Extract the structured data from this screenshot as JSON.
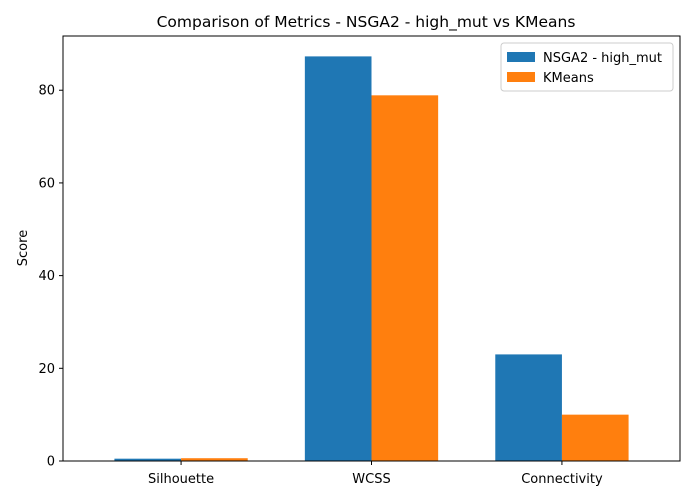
{
  "chart_data": {
    "type": "bar",
    "title": "Comparison of Metrics - NSGA2 - high_mut vs KMeans",
    "xlabel": "",
    "ylabel": "Score",
    "categories": [
      "Silhouette",
      "WCSS",
      "Connectivity"
    ],
    "series": [
      {
        "name": "NSGA2 - high_mut",
        "color": "#1f77b4",
        "values": [
          0.5,
          87.3,
          23.0
        ]
      },
      {
        "name": "KMeans",
        "color": "#ff7f0e",
        "values": [
          0.6,
          78.9,
          10.0
        ]
      }
    ],
    "ylim": [
      0,
      91.7
    ],
    "yticks": [
      0,
      20,
      40,
      60,
      80
    ],
    "grid": false,
    "legend_position": "top-right"
  }
}
